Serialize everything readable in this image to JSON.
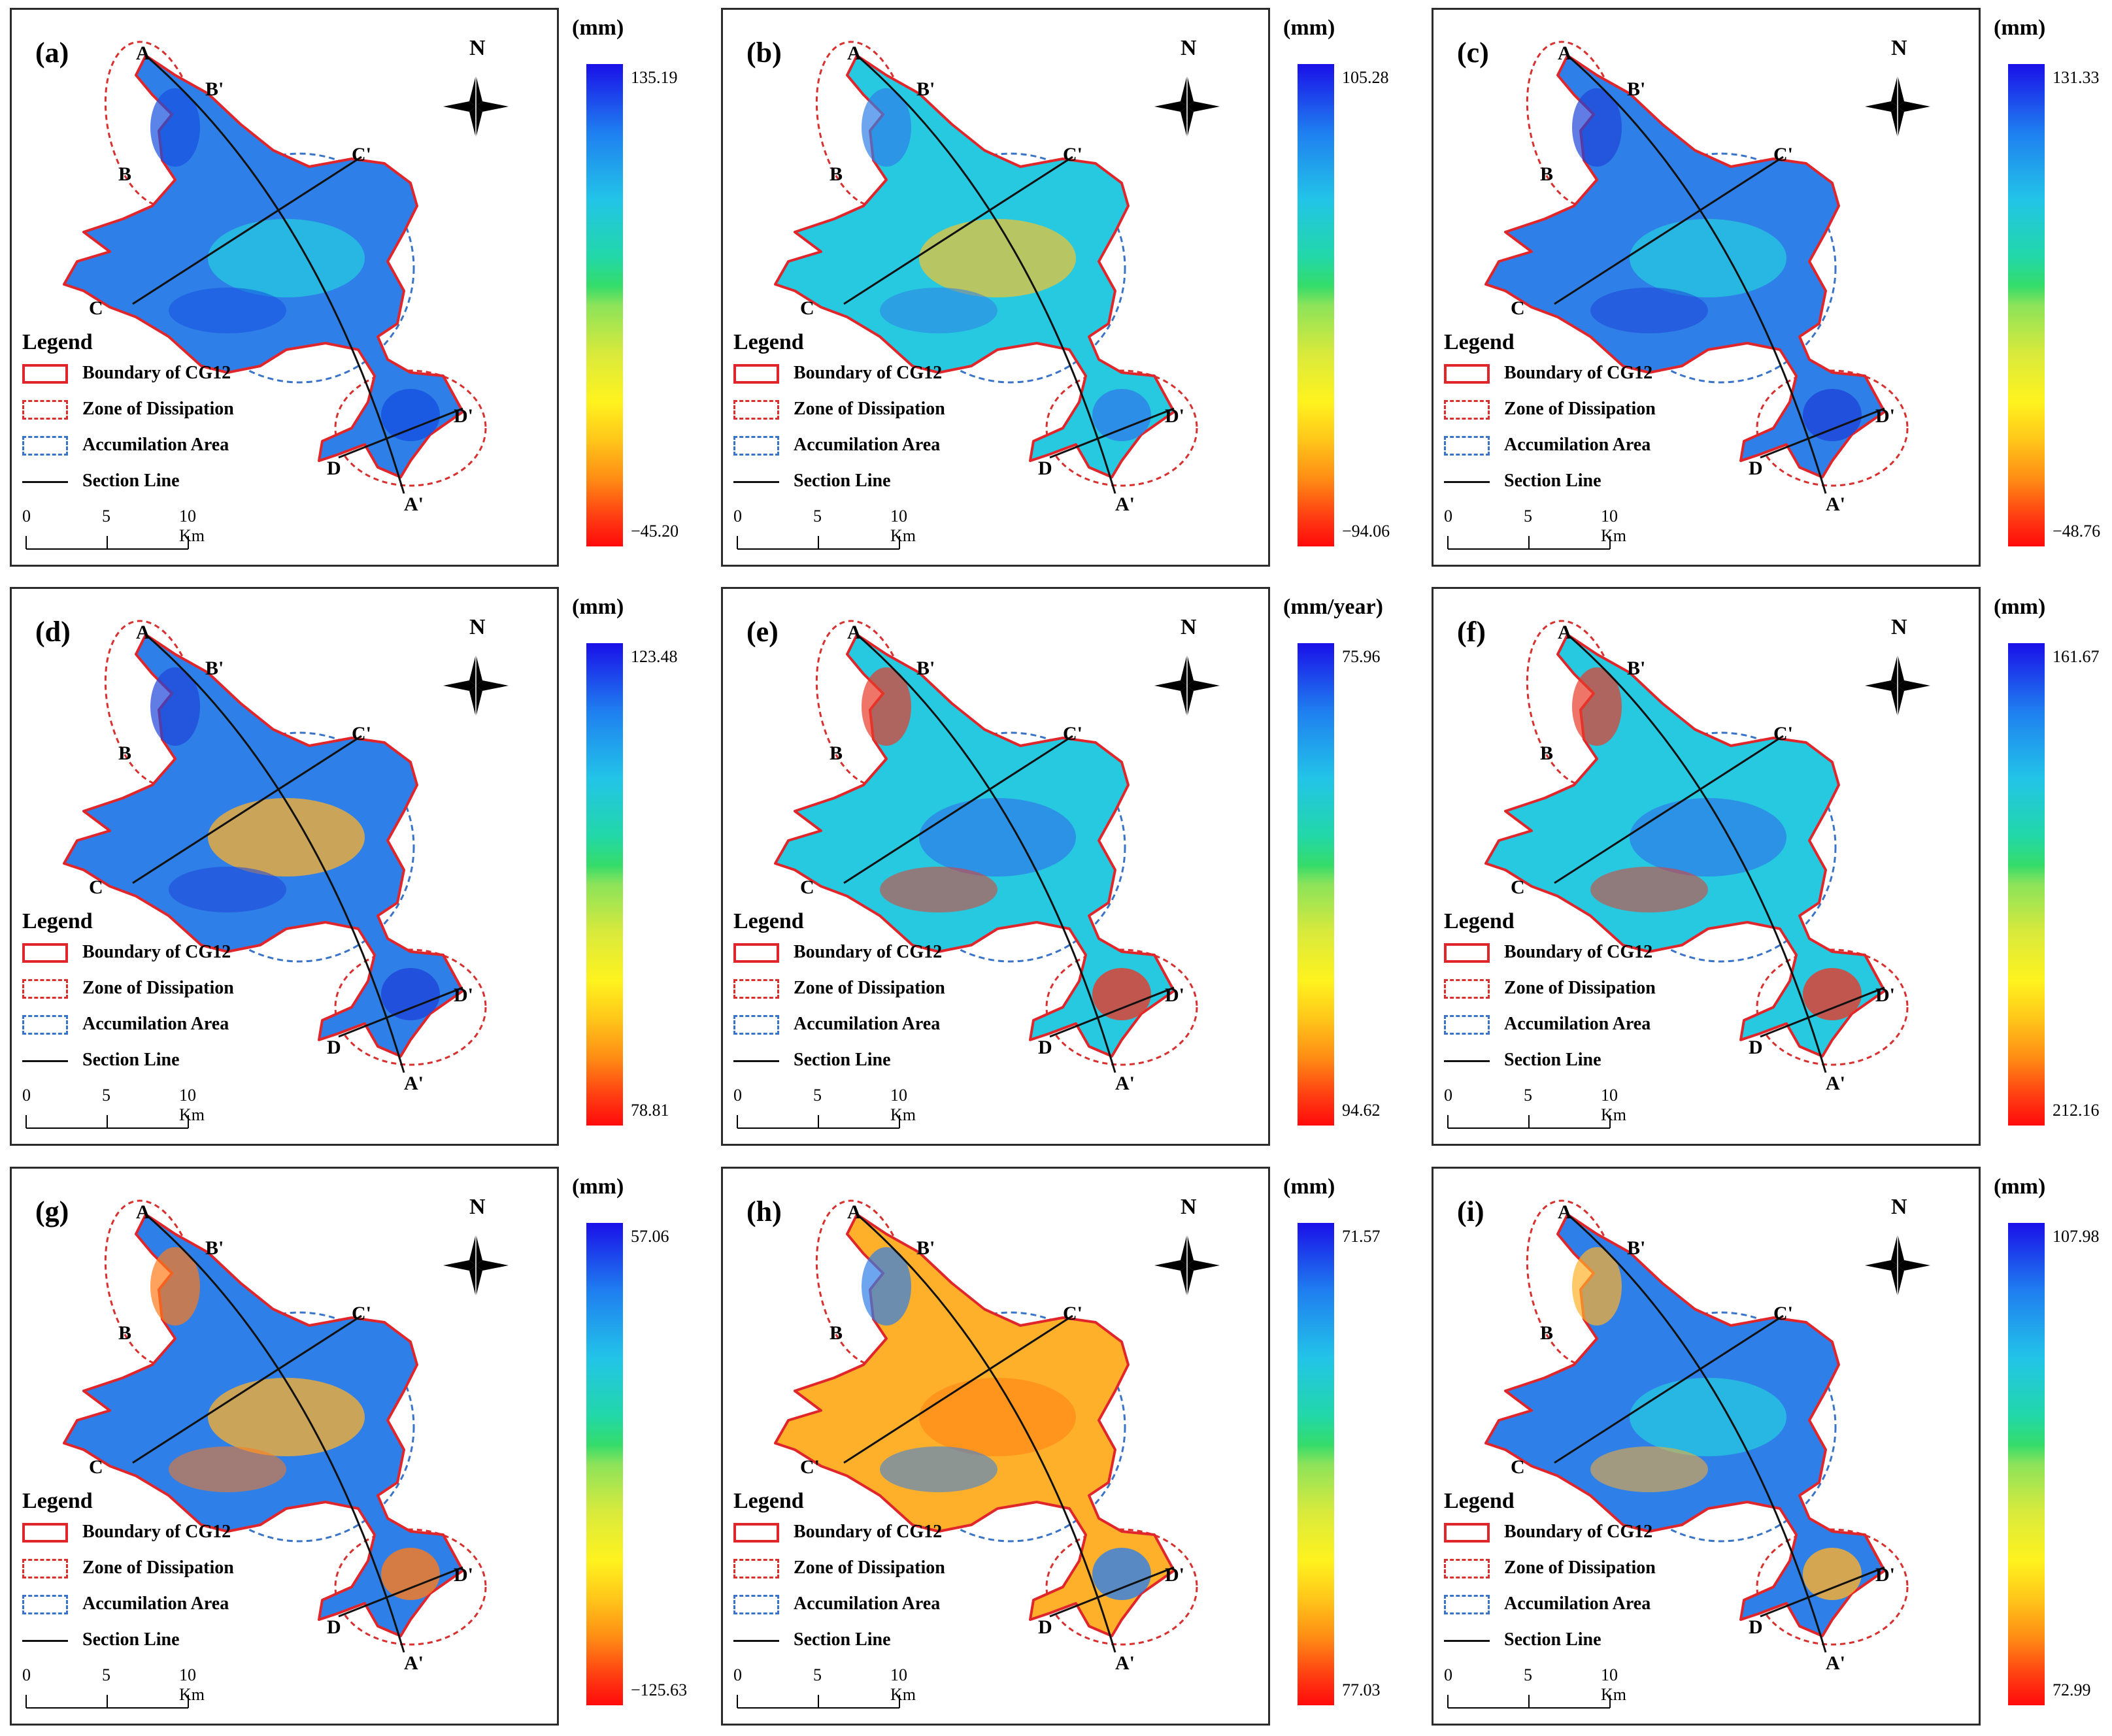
{
  "figure": {
    "legend_title": "Legend",
    "legend_items": {
      "boundary": "Boundary of CG12",
      "dissipation": "Zone of Dissipation",
      "accumulation": "Accumilation Area",
      "section": "Section Line"
    },
    "scale_labels": [
      "0",
      "5",
      "10 Km"
    ],
    "north_label": "N",
    "point_labels": [
      "A",
      "B'",
      "C'",
      "B",
      "C",
      "D'",
      "D",
      "A'"
    ],
    "colors": {
      "boundary": "#e0262a",
      "dissipation": "#d8302e",
      "accumulation": "#3a74c8",
      "section": "#111111",
      "colorbar_high": "#1a10e8",
      "colorbar_low": "#ff0a0a"
    }
  },
  "panels": [
    {
      "label": "(a)",
      "unit": "(mm)",
      "max": "135.19",
      "min": "−45.20",
      "point_c_label": "C"
    },
    {
      "label": "(b)",
      "unit": "(mm)",
      "max": "105.28",
      "min": "−94.06",
      "point_c_label": "C"
    },
    {
      "label": "(c)",
      "unit": "(mm)",
      "max": "131.33",
      "min": "−48.76",
      "point_c_label": "C"
    },
    {
      "label": "(d)",
      "unit": "(mm)",
      "max": "123.48",
      "min": "78.81",
      "point_c_label": "C"
    },
    {
      "label": "(e)",
      "unit": "(mm/year)",
      "max": "75.96",
      "min": "94.62",
      "point_c_label": "C"
    },
    {
      "label": "(f)",
      "unit": "(mm)",
      "max": "161.67",
      "min": "212.16",
      "point_c_label": "C"
    },
    {
      "label": "(g)",
      "unit": "(mm)",
      "max": "57.06",
      "min": "−125.63",
      "point_c_label": "C"
    },
    {
      "label": "(h)",
      "unit": "(mm)",
      "max": "71.57",
      "min": "77.03",
      "point_c_label": "C'"
    },
    {
      "label": "(i)",
      "unit": "(mm)",
      "max": "107.98",
      "min": "72.99",
      "point_c_label": "C"
    }
  ]
}
